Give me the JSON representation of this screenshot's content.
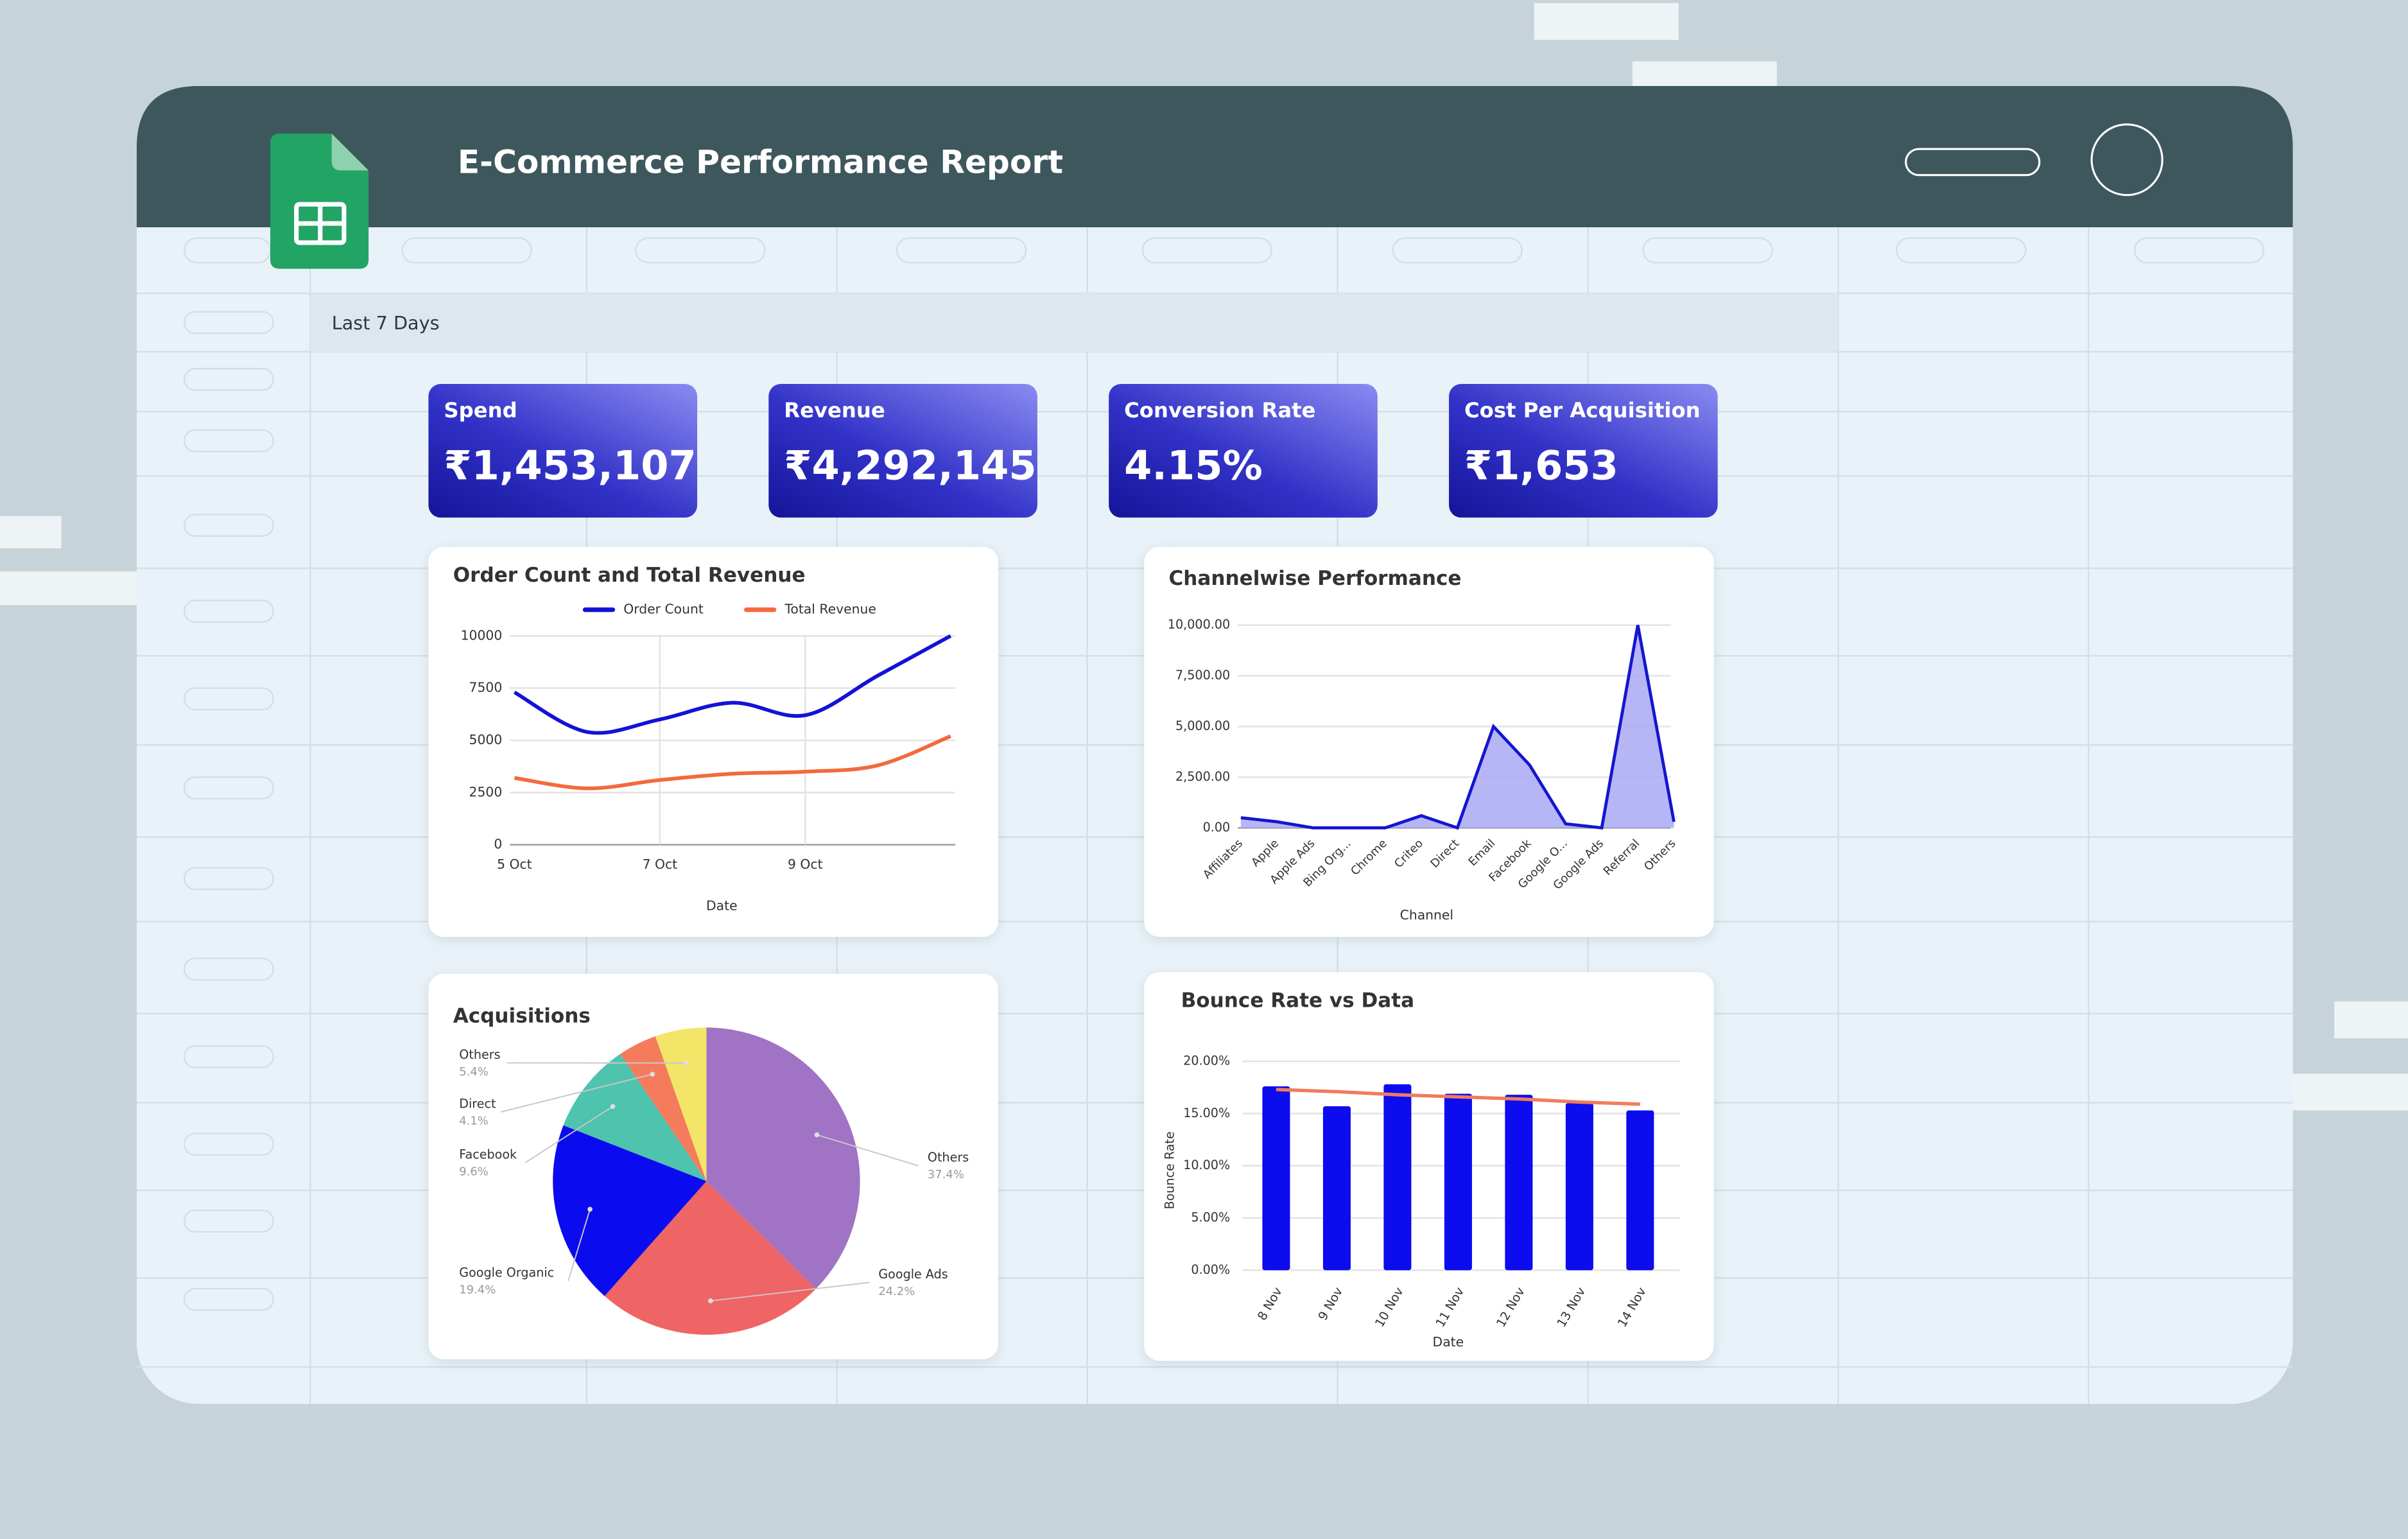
{
  "header": {
    "title": "E-Commerce Performance Report"
  },
  "filter_label": "Last 7 Days",
  "kpis": [
    {
      "label": "Spend",
      "value": "₹1,453,107"
    },
    {
      "label": "Revenue",
      "value": "₹4,292,145"
    },
    {
      "label": "Conversion Rate",
      "value": "4.15%"
    },
    {
      "label": "Cost Per Acquisition",
      "value": "₹1,653"
    }
  ],
  "chart_data": [
    {
      "type": "line",
      "title": "Order Count and Total Revenue",
      "x_label": "Date",
      "categories": [
        "5 Oct",
        null,
        "7 Oct",
        null,
        "9 Oct",
        null,
        null
      ],
      "series": [
        {
          "name": "Order Count",
          "color": "#1212d6",
          "values": [
            7300,
            5400,
            6000,
            6800,
            6200,
            8100,
            10000
          ]
        },
        {
          "name": "Total Revenue",
          "color": "#f26a3d",
          "values": [
            3200,
            2700,
            3100,
            3400,
            3500,
            3800,
            5200
          ]
        }
      ],
      "ylim": [
        0,
        10000
      ],
      "yticks": [
        0,
        2500,
        5000,
        7500,
        10000
      ],
      "grid": true
    },
    {
      "type": "area",
      "title": "Channelwise Performance",
      "x_label": "Channel",
      "categories": [
        "Affiliates",
        "Apple",
        "Apple Ads",
        "Bing Org...",
        "Chrome",
        "Criteo",
        "Direct",
        "Email",
        "Facebook",
        "Google O...",
        "Google Ads",
        "Referral",
        "Others"
      ],
      "values": [
        500,
        300,
        0,
        0,
        0,
        600,
        0,
        5000,
        3100,
        200,
        0,
        10000,
        300
      ],
      "color": "#1515d0",
      "fill": "#a9a9f6",
      "ylim": [
        0,
        10000
      ],
      "yticks": [
        {
          "value": 0,
          "label": "0.00"
        },
        {
          "value": 2500,
          "label": "2,500.00"
        },
        {
          "value": 5000,
          "label": "5,000.00"
        },
        {
          "value": 7500,
          "label": "7,500.00"
        },
        {
          "value": 10000,
          "label": "10,000.00"
        }
      ],
      "grid": true
    },
    {
      "type": "pie",
      "title": "Acquisitions",
      "categories": [
        "Others",
        "Google Ads",
        "Google Organic",
        "Facebook",
        "Direct",
        "Others"
      ],
      "values": [
        37.4,
        24.2,
        19.4,
        9.6,
        4.1,
        5.4
      ],
      "value_labels": [
        "37.4%",
        "24.2%",
        "19.4%",
        "9.6%",
        "4.1%",
        "5.4%"
      ],
      "colors": [
        "#a073c4",
        "#ef6464",
        "#0b0bf0",
        "#4ec3ad",
        "#f47c5c",
        "#f3e567"
      ]
    },
    {
      "type": "bar",
      "title": "Bounce Rate vs Data",
      "x_label": "Date",
      "y_label": "Bounce Rate",
      "categories": [
        "8 Nov",
        "9 Nov",
        "10 Nov",
        "11 Nov",
        "12 Nov",
        "13 Nov",
        "14 Nov"
      ],
      "series": [
        {
          "color": "#0c0cee",
          "values": [
            17.6,
            15.7,
            17.8,
            16.9,
            16.8,
            16.0,
            15.3
          ]
        },
        {
          "type": "line",
          "color": "#f07c5c",
          "values": [
            17.3,
            17.1,
            16.8,
            16.6,
            16.4,
            16.1,
            15.9
          ]
        }
      ],
      "ylim": [
        0,
        20
      ],
      "yticks": [
        {
          "value": 0,
          "label": "0.00%"
        },
        {
          "value": 5,
          "label": "5.00%"
        },
        {
          "value": 10,
          "label": "10.00%"
        },
        {
          "value": 15,
          "label": "15.00%"
        },
        {
          "value": 20,
          "label": "20.00%"
        }
      ],
      "grid": true
    }
  ]
}
